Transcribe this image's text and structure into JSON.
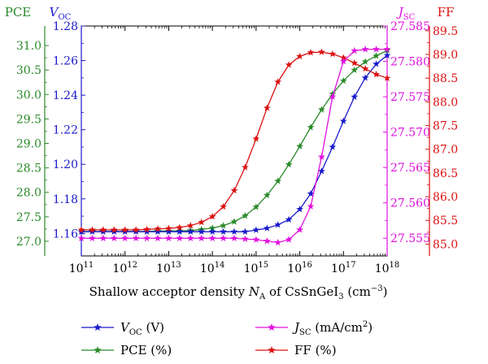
{
  "chart_data": {
    "type": "line",
    "title": "",
    "xlabel": {
      "prefix": "Shallow acceptor density ",
      "var": "N",
      "var_sub": "A",
      "mid": " of CsSnGeI",
      "formula_sub": "3",
      "unit": " (cm",
      "unit_sup": "−3",
      "unit_end": ")"
    },
    "x_scale": "log10",
    "x_ticks": [
      100000000000.0,
      1000000000000.0,
      10000000000000.0,
      100000000000000.0,
      1000000000000000.0,
      1e+16,
      1e+17,
      1e+18
    ],
    "x_tick_labels": [
      {
        "base": "10",
        "exp": "11"
      },
      {
        "base": "10",
        "exp": "12"
      },
      {
        "base": "10",
        "exp": "13"
      },
      {
        "base": "10",
        "exp": "14"
      },
      {
        "base": "10",
        "exp": "15"
      },
      {
        "base": "10",
        "exp": "16"
      },
      {
        "base": "10",
        "exp": "17"
      },
      {
        "base": "10",
        "exp": "18"
      }
    ],
    "xlim": [
      100000000000.0,
      1e+18
    ],
    "axes": {
      "pce": {
        "label": "PCE",
        "color": "#2a8a2a",
        "ylim": [
          26.7,
          31.4
        ],
        "ticks": [
          "27.0",
          "27.5",
          "28.0",
          "28.5",
          "29.0",
          "29.5",
          "30.0",
          "30.5",
          "31.0"
        ]
      },
      "voc": {
        "label": "V",
        "label_sub": "OC",
        "color": "#1a1acc",
        "ylim": [
          1.147,
          1.28
        ],
        "ticks": [
          "1.16",
          "1.18",
          "1.20",
          "1.22",
          "1.24",
          "1.26",
          "1.28"
        ]
      },
      "jsc": {
        "label": "J",
        "label_sub": "SC",
        "color": "#e011e0",
        "ylim": [
          27.5525,
          27.585
        ],
        "ticks": [
          "27.555",
          "27.560",
          "27.565",
          "27.570",
          "27.575",
          "27.580",
          "27.585"
        ]
      },
      "ff": {
        "label": "FF",
        "color": "#dd1111",
        "ylim": [
          84.75,
          89.6
        ],
        "ticks": [
          "85.0",
          "85.5",
          "86.0",
          "86.5",
          "87.0",
          "87.5",
          "88.0",
          "88.5",
          "89.0",
          "89.5"
        ]
      }
    },
    "series": [
      {
        "key": "voc",
        "axis": "voc",
        "color": "#1a1acc",
        "legend": {
          "var": "V",
          "sub": "OC",
          "text": " (V)"
        },
        "x": [
          100000000000.0,
          178000000000.0,
          316000000000.0,
          562000000000.0,
          1000000000000.0,
          1780000000000.0,
          3160000000000.0,
          5620000000000.0,
          10000000000000.0,
          17800000000000.0,
          31600000000000.0,
          56200000000000.0,
          100000000000000.0,
          178000000000000.0,
          316000000000000.0,
          562000000000000.0,
          1000000000000000.0,
          1780000000000000.0,
          3160000000000000.0,
          5620000000000000.0,
          1e+16,
          1.78e+16,
          3.16e+16,
          5.62e+16,
          1e+17,
          1.78e+17,
          3.16e+17,
          5.62e+17,
          1e+18
        ],
        "y": [
          1.161,
          1.161,
          1.161,
          1.161,
          1.161,
          1.161,
          1.161,
          1.161,
          1.161,
          1.161,
          1.161,
          1.161,
          1.161,
          1.161,
          1.161,
          1.161,
          1.162,
          1.163,
          1.165,
          1.168,
          1.174,
          1.183,
          1.196,
          1.21,
          1.225,
          1.239,
          1.25,
          1.258,
          1.263
        ]
      },
      {
        "key": "pce",
        "axis": "pce",
        "color": "#2a8a2a",
        "legend": {
          "var": "",
          "sub": "",
          "text": "PCE (%)"
        },
        "x": [
          100000000000.0,
          178000000000.0,
          316000000000.0,
          562000000000.0,
          1000000000000.0,
          1780000000000.0,
          3160000000000.0,
          5620000000000.0,
          10000000000000.0,
          17800000000000.0,
          31600000000000.0,
          56200000000000.0,
          100000000000000.0,
          178000000000000.0,
          316000000000000.0,
          562000000000000.0,
          1000000000000000.0,
          1780000000000000.0,
          3160000000000000.0,
          5620000000000000.0,
          1e+16,
          1.78e+16,
          3.16e+16,
          5.62e+16,
          1e+17,
          1.78e+17,
          3.16e+17,
          5.62e+17,
          1e+18
        ],
        "y": [
          27.2,
          27.2,
          27.2,
          27.2,
          27.2,
          27.2,
          27.2,
          27.21,
          27.21,
          27.21,
          27.22,
          27.24,
          27.27,
          27.32,
          27.4,
          27.52,
          27.7,
          27.94,
          28.23,
          28.57,
          28.94,
          29.33,
          29.69,
          30.01,
          30.28,
          30.5,
          30.67,
          30.79,
          30.9
        ]
      },
      {
        "key": "jsc",
        "axis": "jsc",
        "color": "#e011e0",
        "legend": {
          "var": "J",
          "sub": "SC",
          "text": " (mA/cm",
          "sup": "2",
          "end": ")"
        },
        "x": [
          100000000000.0,
          178000000000.0,
          316000000000.0,
          562000000000.0,
          1000000000000.0,
          1780000000000.0,
          3160000000000.0,
          5620000000000.0,
          10000000000000.0,
          17800000000000.0,
          31600000000000.0,
          56200000000000.0,
          100000000000000.0,
          178000000000000.0,
          316000000000000.0,
          562000000000000.0,
          1000000000000000.0,
          1780000000000000.0,
          3160000000000000.0,
          5620000000000000.0,
          1e+16,
          1.78e+16,
          3.16e+16,
          5.62e+16,
          1e+17,
          1.78e+17,
          3.16e+17,
          5.62e+17,
          1e+18
        ],
        "y": [
          27.555,
          27.555,
          27.555,
          27.555,
          27.555,
          27.555,
          27.555,
          27.555,
          27.555,
          27.555,
          27.555,
          27.555,
          27.555,
          27.555,
          27.555,
          27.5549,
          27.5548,
          27.5546,
          27.5544,
          27.5548,
          27.5562,
          27.5595,
          27.5665,
          27.575,
          27.58,
          27.5815,
          27.5817,
          27.5817,
          27.5817
        ]
      },
      {
        "key": "ff",
        "axis": "ff",
        "color": "#dd1111",
        "legend": {
          "var": "",
          "sub": "",
          "text": "FF (%)"
        },
        "x": [
          100000000000.0,
          178000000000.0,
          316000000000.0,
          562000000000.0,
          1000000000000.0,
          1780000000000.0,
          3160000000000.0,
          5620000000000.0,
          10000000000000.0,
          17800000000000.0,
          31600000000000.0,
          56200000000000.0,
          100000000000000.0,
          178000000000000.0,
          316000000000000.0,
          562000000000000.0,
          1000000000000000.0,
          1780000000000000.0,
          3160000000000000.0,
          5620000000000000.0,
          1e+16,
          1.78e+16,
          3.16e+16,
          5.62e+16,
          1e+17,
          1.78e+17,
          3.16e+17,
          5.62e+17,
          1e+18
        ],
        "y": [
          85.3,
          85.3,
          85.3,
          85.3,
          85.3,
          85.3,
          85.31,
          85.32,
          85.33,
          85.35,
          85.39,
          85.46,
          85.58,
          85.79,
          86.13,
          86.62,
          87.22,
          87.87,
          88.42,
          88.78,
          88.96,
          89.04,
          89.05,
          89.01,
          88.93,
          88.82,
          88.7,
          88.58,
          88.5
        ]
      }
    ],
    "grid": false,
    "legend_position": "bottom"
  }
}
